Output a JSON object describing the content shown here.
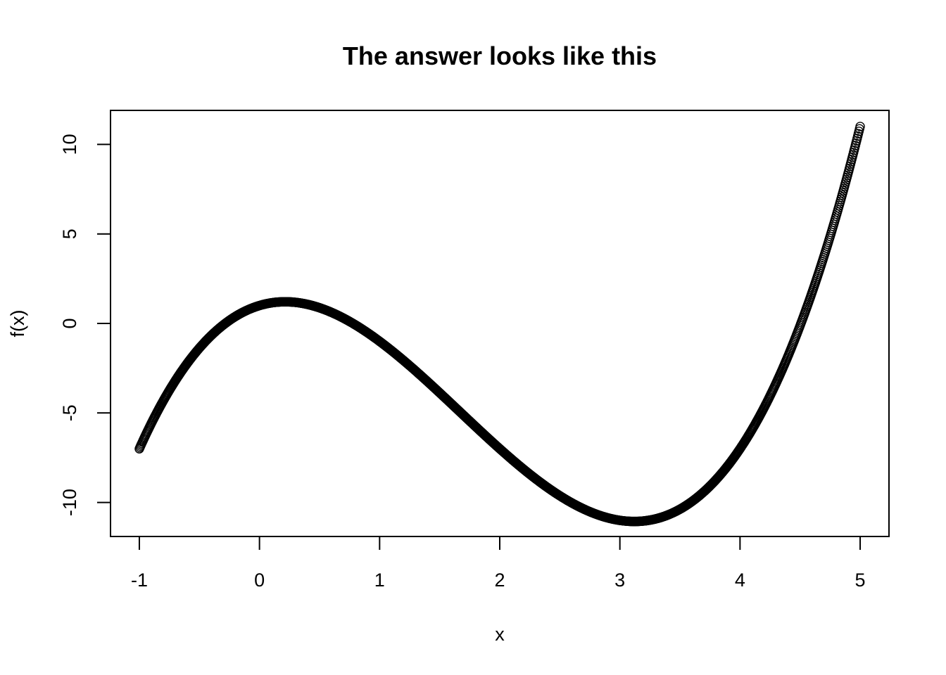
{
  "chart_data": {
    "type": "scatter",
    "title": "The answer looks like this",
    "xlabel": "x",
    "ylabel": "f(x)",
    "xlim": [
      -1.24,
      5.24
    ],
    "ylim": [
      -11.9,
      11.9
    ],
    "x_ticks": [
      -1,
      0,
      1,
      2,
      3,
      4,
      5
    ],
    "x_tick_labels": [
      "-1",
      "0",
      "1",
      "2",
      "3",
      "4",
      "5"
    ],
    "y_ticks": [
      -10,
      -5,
      0,
      5,
      10
    ],
    "y_tick_labels": [
      "-10",
      "-5",
      "0",
      "5",
      "10"
    ],
    "grid": false,
    "legend": "none",
    "marker": "open-circle",
    "series": [
      {
        "x_range": [
          -1,
          5
        ],
        "point_spacing": 0.005,
        "formula": "f(x) = x^3 - 5x^2 + 2x + 1",
        "sample_points": [
          {
            "x": -1,
            "y": -7
          },
          {
            "x": 0,
            "y": 1
          },
          {
            "x": 0.21,
            "y": 1.21
          },
          {
            "x": 1,
            "y": -1
          },
          {
            "x": 2,
            "y": -7
          },
          {
            "x": 3,
            "y": -11
          },
          {
            "x": 3.12,
            "y": -11.06
          },
          {
            "x": 4,
            "y": -7
          },
          {
            "x": 5,
            "y": 11
          }
        ]
      }
    ]
  }
}
